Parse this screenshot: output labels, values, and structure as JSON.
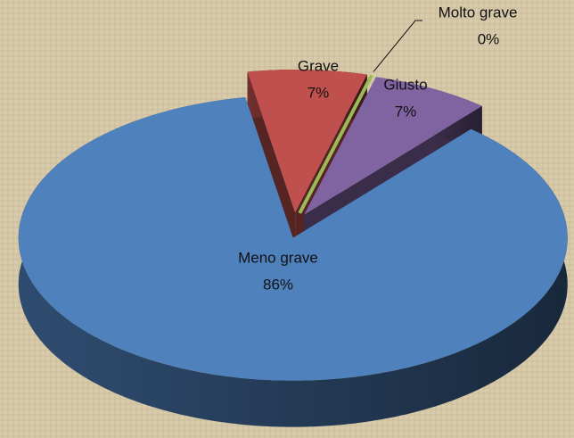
{
  "chart_data": {
    "type": "pie3d",
    "categories": [
      "Grave",
      "Molto grave",
      "Giusto",
      "Meno grave"
    ],
    "values": [
      7,
      0,
      7,
      86
    ],
    "value_labels": [
      "7%",
      "0%",
      "7%",
      "86%"
    ],
    "colors": [
      "#c0504d",
      "#9bbb59",
      "#8064a2",
      "#4f81bd"
    ]
  }
}
